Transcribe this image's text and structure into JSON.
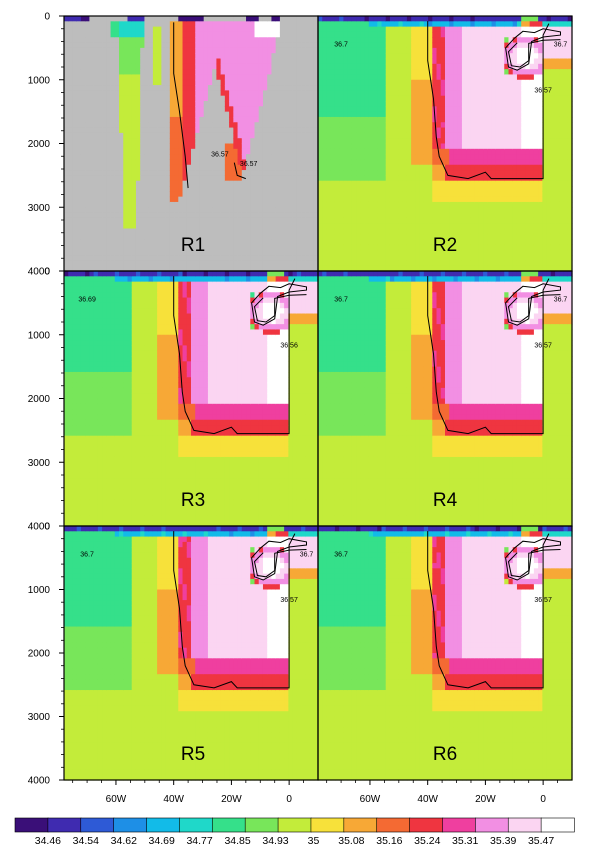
{
  "chart_data": {
    "type": "heatmap",
    "y_ticks": [
      "0",
      "1000",
      "2000",
      "3000",
      "4000"
    ],
    "ylim": [
      0,
      4000
    ],
    "x_ticks": [
      "60W",
      "40W",
      "20W",
      "0"
    ],
    "xlim": [
      -78,
      10
    ],
    "x_tick_values": [
      -60,
      -40,
      -20,
      0
    ],
    "grid": false,
    "legend": "colorbar-bottom",
    "colorbar": {
      "levels": [
        "34.46",
        "34.54",
        "34.62",
        "34.69",
        "34.77",
        "34.85",
        "34.93",
        "35",
        "35.08",
        "35.16",
        "35.24",
        "35.31",
        "35.39",
        "35.47"
      ],
      "colors": [
        "#3a0f78",
        "#3f2bb0",
        "#2e5ad6",
        "#1e8fe6",
        "#12bbe8",
        "#1fd8c9",
        "#35e08a",
        "#78e65a",
        "#c3ec3a",
        "#f7e13a",
        "#f7a836",
        "#f46a33",
        "#ef3540",
        "#ef3f9f",
        "#f28fe3",
        "#fbd5f2",
        "#ffffff"
      ]
    },
    "panels": [
      {
        "label": "R1",
        "contour_labels": [
          "36.57",
          "36.57"
        ]
      },
      {
        "label": "R2",
        "contour_labels": [
          "36.7",
          "36.7",
          "36.57"
        ]
      },
      {
        "label": "R3",
        "contour_labels": [
          "36.69",
          "36.56"
        ]
      },
      {
        "label": "R4",
        "contour_labels": [
          "36.7",
          "36.7",
          "36.57"
        ]
      },
      {
        "label": "R5",
        "contour_labels": [
          "36.7",
          "36.7",
          "36.57"
        ]
      },
      {
        "label": "R6",
        "contour_labels": [
          "36.7",
          "36.57"
        ]
      }
    ]
  }
}
